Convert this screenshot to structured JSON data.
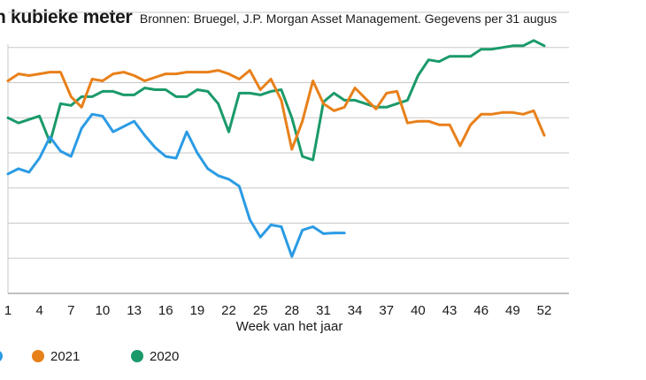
{
  "chart_data": {
    "type": "line",
    "title": "n kubieke meter",
    "subtitle": "Bronnen: Bruegel, J.P. Morgan Asset Management. Gegevens per 31 augus",
    "xlabel": "Week van het jaar",
    "ylabel": "",
    "xticks": [
      1,
      4,
      7,
      10,
      13,
      16,
      19,
      22,
      25,
      28,
      31,
      34,
      37,
      40,
      43,
      46,
      49,
      52
    ],
    "xlim": [
      1,
      52
    ],
    "ylim": [
      0,
      8
    ],
    "ygrid": [
      1,
      2,
      3,
      4,
      5,
      6,
      7,
      8
    ],
    "grid": true,
    "legend_position": "bottom-left",
    "series": [
      {
        "name": "",
        "color": "#2b9be4",
        "x": [
          1,
          2,
          3,
          4,
          5,
          6,
          7,
          8,
          9,
          10,
          11,
          12,
          13,
          14,
          15,
          16,
          17,
          18,
          19,
          20,
          21,
          22,
          23,
          24,
          25,
          26,
          27,
          28,
          29,
          30,
          31,
          32,
          33
        ],
        "y": [
          3.4,
          3.55,
          3.45,
          3.85,
          4.45,
          4.05,
          3.9,
          4.7,
          5.1,
          5.05,
          4.6,
          4.75,
          4.9,
          4.5,
          4.15,
          3.9,
          3.85,
          4.6,
          4.0,
          3.55,
          3.35,
          3.25,
          3.05,
          2.1,
          1.6,
          1.95,
          1.9,
          1.05,
          1.8,
          1.9,
          1.7,
          1.72,
          1.72
        ]
      },
      {
        "name": "2021",
        "color": "#e8801a",
        "x": [
          1,
          2,
          3,
          4,
          5,
          6,
          7,
          8,
          9,
          10,
          11,
          12,
          13,
          14,
          15,
          16,
          17,
          18,
          19,
          20,
          21,
          22,
          23,
          24,
          25,
          26,
          27,
          28,
          29,
          30,
          31,
          32,
          33,
          34,
          35,
          36,
          37,
          38,
          39,
          40,
          41,
          42,
          43,
          44,
          45,
          46,
          47,
          48,
          49,
          50,
          51,
          52
        ],
        "y": [
          6.05,
          6.25,
          6.2,
          6.25,
          6.3,
          6.3,
          5.6,
          5.3,
          6.1,
          6.05,
          6.25,
          6.3,
          6.2,
          6.05,
          6.15,
          6.25,
          6.25,
          6.3,
          6.3,
          6.3,
          6.35,
          6.25,
          6.1,
          6.35,
          5.8,
          6.1,
          5.5,
          4.1,
          4.9,
          6.05,
          5.4,
          5.2,
          5.3,
          5.85,
          5.55,
          5.25,
          5.7,
          5.75,
          4.85,
          4.9,
          4.9,
          4.8,
          4.8,
          4.2,
          4.8,
          5.1,
          5.1,
          5.15,
          5.15,
          5.1,
          5.2,
          4.5
        ]
      },
      {
        "name": "2020",
        "color": "#1a9a6a",
        "x": [
          1,
          2,
          3,
          4,
          5,
          6,
          7,
          8,
          9,
          10,
          11,
          12,
          13,
          14,
          15,
          16,
          17,
          18,
          19,
          20,
          21,
          22,
          23,
          24,
          25,
          26,
          27,
          28,
          29,
          30,
          31,
          32,
          33,
          34,
          35,
          36,
          37,
          38,
          39,
          40,
          41,
          42,
          43,
          44,
          45,
          46,
          47,
          48,
          49,
          50,
          51,
          52
        ],
        "y": [
          5.0,
          4.85,
          4.95,
          5.05,
          4.3,
          5.4,
          5.35,
          5.6,
          5.6,
          5.75,
          5.75,
          5.65,
          5.65,
          5.85,
          5.8,
          5.8,
          5.6,
          5.6,
          5.8,
          5.75,
          5.4,
          4.6,
          5.7,
          5.7,
          5.65,
          5.75,
          5.8,
          5.0,
          3.9,
          3.8,
          5.45,
          5.7,
          5.5,
          5.5,
          5.4,
          5.3,
          5.3,
          5.4,
          5.5,
          6.2,
          6.65,
          6.6,
          6.75,
          6.75,
          6.75,
          6.95,
          6.95,
          7.0,
          7.05,
          7.05,
          7.2,
          7.05
        ]
      }
    ]
  }
}
